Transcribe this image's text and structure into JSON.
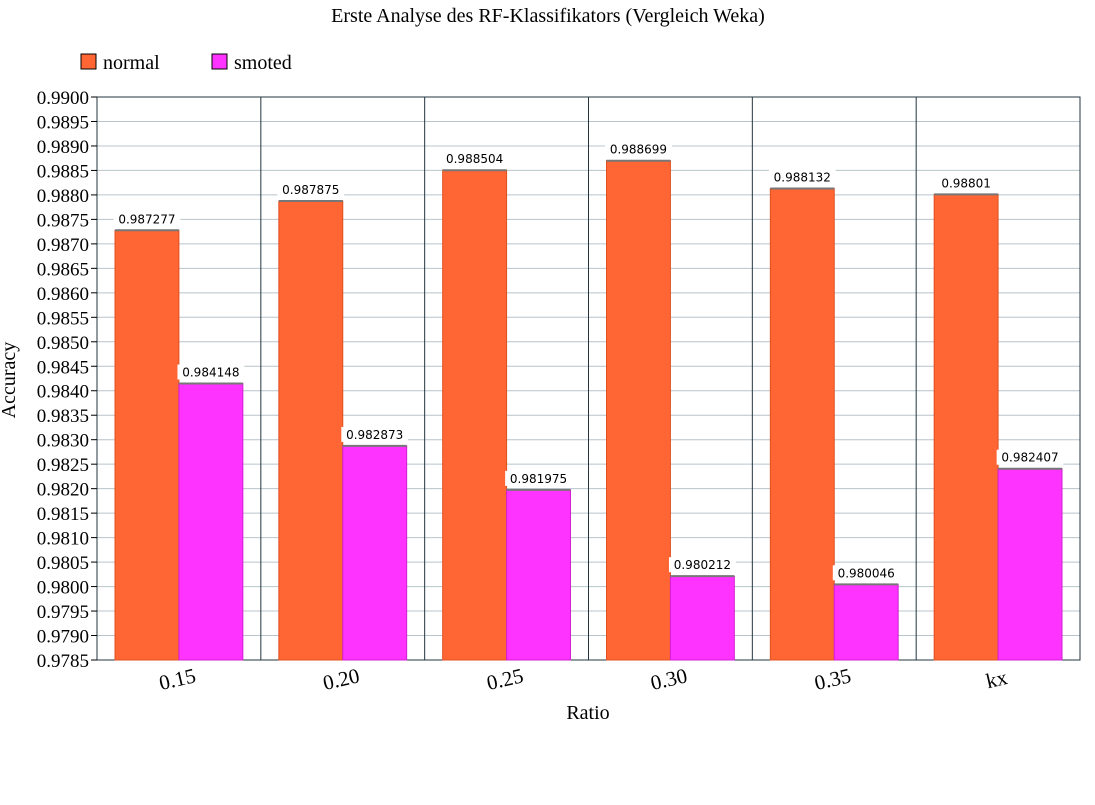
{
  "chart_data": {
    "type": "bar",
    "title": "Erste Analyse des RF-Klassifikators (Vergleich Weka)",
    "xlabel": "Ratio",
    "ylabel": "Accuracy",
    "categories": [
      "0.15",
      "0.20",
      "0.25",
      "0.30",
      "0.35",
      "kx"
    ],
    "series": [
      {
        "name": "normal",
        "color": "#ff6633",
        "values": [
          0.987277,
          0.987875,
          0.988504,
          0.988699,
          0.988132,
          0.98801
        ],
        "labels": [
          "0.987277",
          "0.987875",
          "0.988504",
          "0.988699",
          "0.988132",
          "0.98801"
        ]
      },
      {
        "name": "smoted",
        "color": "#ff33ff",
        "values": [
          0.984148,
          0.982873,
          0.981975,
          0.980212,
          0.980046,
          0.982407
        ],
        "labels": [
          "0.984148",
          "0.982873",
          "0.981975",
          "0.980212",
          "0.980046",
          "0.982407"
        ]
      }
    ],
    "ylim": [
      0.9785,
      0.99
    ],
    "ystep": 0.0005,
    "grid": true,
    "legend_position": "top-left"
  }
}
